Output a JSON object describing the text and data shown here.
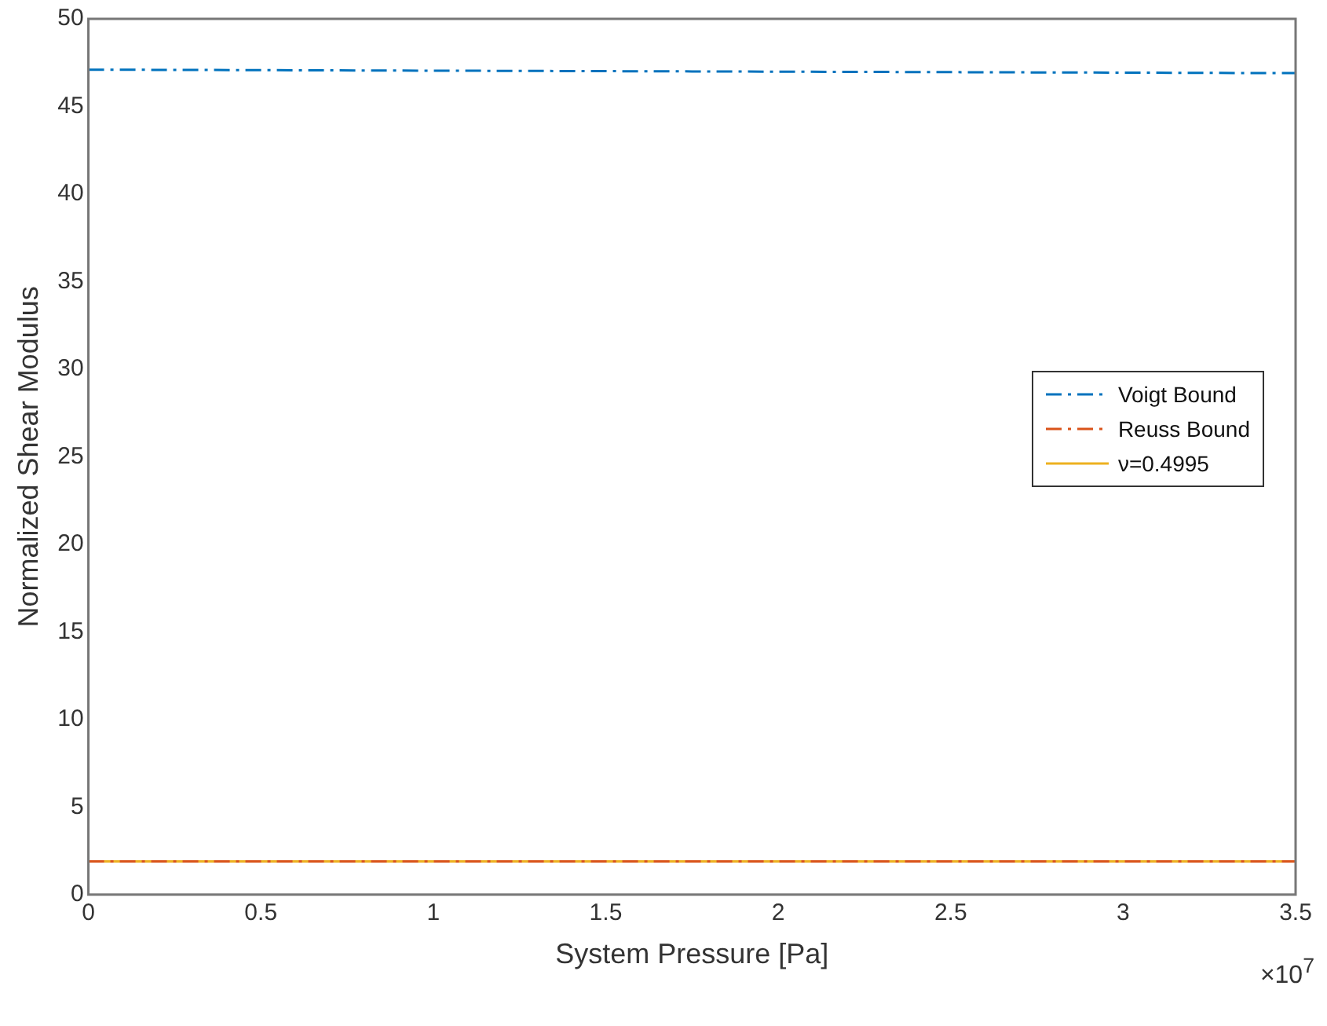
{
  "chart_data": {
    "type": "line",
    "xlabel": "System Pressure [Pa]",
    "ylabel": "Normalized Shear Modulus",
    "x": [
      0,
      1.75,
      3.5
    ],
    "series": [
      {
        "name": "Voigt Bound",
        "color": "#0072bd",
        "values": [
          47.1,
          47.0,
          46.9
        ],
        "line_style": "dashed"
      },
      {
        "name": "Reuss Bound",
        "color": "#d95319",
        "values": [
          1.9,
          1.9,
          1.9
        ],
        "line_style": "dashed"
      },
      {
        "name": "ν=0.4995",
        "color": "#edb120",
        "values": [
          1.9,
          1.9,
          1.9
        ],
        "line_style": "solid"
      }
    ],
    "xlim": [
      0,
      3.5
    ],
    "xticks": [
      0,
      0.5,
      1,
      1.5,
      2,
      2.5,
      3,
      3.5
    ],
    "ylim": [
      0,
      50
    ],
    "yticks": [
      0,
      5,
      10,
      15,
      20,
      25,
      30,
      35,
      40,
      45,
      50
    ],
    "grid": false,
    "legend": "right",
    "marker": "none",
    "annotations": [
      "×10$^{7}$"
    ]
  }
}
